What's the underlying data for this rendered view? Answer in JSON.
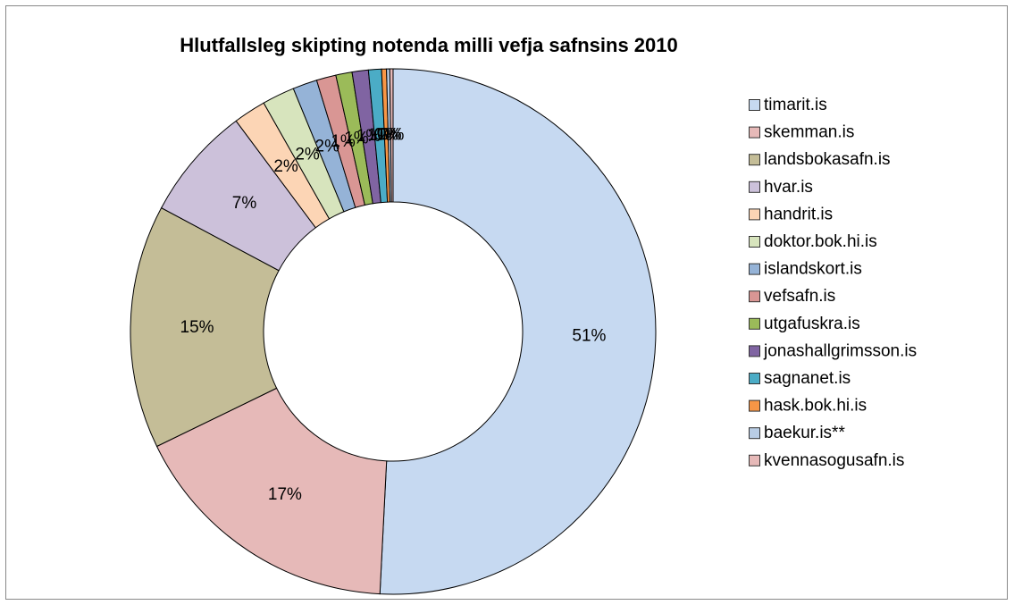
{
  "chart_data": {
    "type": "pie",
    "donut": true,
    "title": "Hlutfallsleg skipting notenda milli vefja  safnsins 2010",
    "categories": [
      "timarit.is",
      "skemman.is",
      "landsbokasafn.is",
      "hvar.is",
      "handrit.is",
      "doktor.bok.hi.is",
      "islandskort.is",
      "vefsafn.is",
      "utgafuskra.is",
      "jonashallgrimsson.is",
      "sagnanet.is",
      "hask.bok.hi.is",
      "baekur.is**",
      "kvennasogusafn.is"
    ],
    "values": [
      50.8,
      17,
      15,
      7,
      2,
      2,
      1.5,
      1.2,
      1,
      1,
      0.8,
      0.3,
      0.2,
      0.2
    ],
    "value_labels": [
      "51%",
      "17%",
      "15%",
      "7%",
      "2%",
      "2%",
      "2%",
      "1%",
      "1%",
      "1%",
      "1%",
      "0%",
      "0%",
      "0%"
    ],
    "colors": [
      "#c6d9f1",
      "#e6b9b8",
      "#c4bd97",
      "#ccc1da",
      "#fcd5b5",
      "#d7e4bd",
      "#95b3d7",
      "#d99694",
      "#9bbb59",
      "#8064a2",
      "#4bacc6",
      "#f79646",
      "#b9cde5",
      "#e6b9b8"
    ],
    "legend": "right"
  }
}
